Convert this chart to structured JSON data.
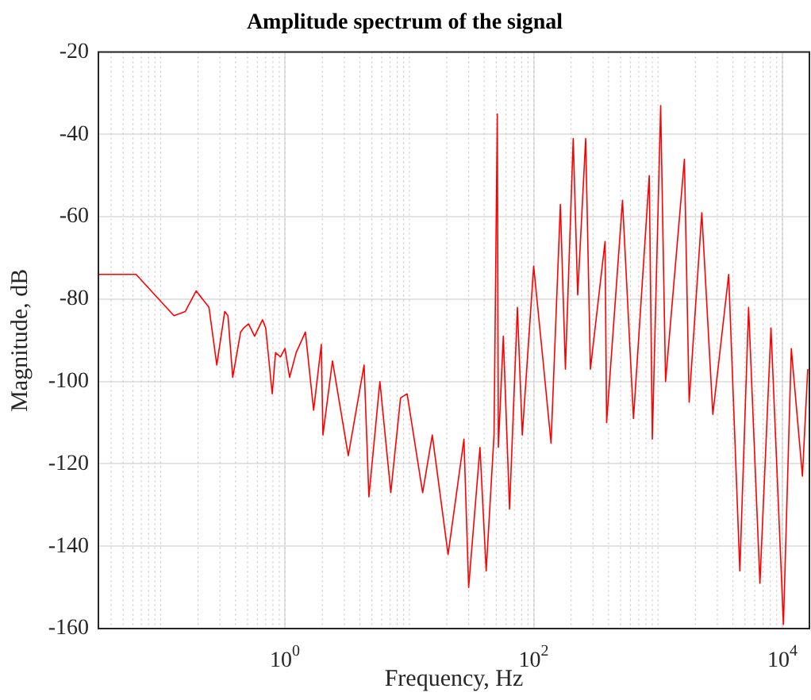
{
  "chart_data": {
    "type": "line",
    "title": "Amplitude spectrum of the signal",
    "xlabel": "Frequency, Hz",
    "ylabel": "Magnitude, dB",
    "log": "x",
    "grid": true,
    "marker": "none",
    "line_style": "solid",
    "xlim": [
      0.0316,
      16500
    ],
    "xticks": [
      {
        "value": 1,
        "label": "10$^{0}$"
      },
      {
        "value": 100,
        "label": "10$^{2}$"
      },
      {
        "value": 10000,
        "label": "10$^{4}$"
      }
    ],
    "ylim": [
      -160,
      -20
    ],
    "yticks": [
      -160,
      -140,
      -120,
      -100,
      -80,
      -60,
      -40,
      -20
    ],
    "x": [
      0.0316,
      0.0635,
      0.128,
      0.158,
      0.193,
      0.245,
      0.283,
      0.328,
      0.348,
      0.38,
      0.44,
      0.466,
      0.51,
      0.57,
      0.66,
      0.7,
      0.79,
      0.84,
      0.92,
      1.0,
      1.09,
      1.23,
      1.46,
      1.7,
      1.96,
      2.02,
      2.41,
      3.23,
      4.33,
      4.73,
      5.8,
      7.1,
      8.5,
      9.6,
      12.8,
      15.3,
      20.5,
      27.5,
      30,
      37,
      41.5,
      48,
      51,
      52,
      57,
      64,
      74,
      81,
      100,
      119,
      138,
      164,
      180,
      208,
      226,
      262,
      286,
      375,
      386,
      518,
      635,
      850,
      900,
      1050,
      1150,
      1630,
      1780,
      2250,
      2760,
      3700,
      4550,
      5350,
      6600,
      8100,
      10200,
      11800,
      14500,
      16000
    ],
    "series": [
      {
        "color": "#ff0000",
        "values": [
          -74,
          -74,
          -84,
          -83,
          -78,
          -82,
          -96,
          -83,
          -84,
          -99,
          -88,
          -87,
          -86,
          -89,
          -85,
          -87,
          -103,
          -93,
          -94,
          -92,
          -99,
          -93,
          -88,
          -107,
          -91,
          -113,
          -95,
          -118,
          -96,
          -128,
          -100,
          -127,
          -104,
          -103,
          -127,
          -113,
          -142,
          -114,
          -150,
          -116,
          -146,
          -113,
          -35,
          -116,
          -89,
          -131,
          -82,
          -113,
          -72,
          -95,
          -115,
          -57,
          -97,
          -41,
          -79,
          -41,
          -97,
          -66,
          -110,
          -56,
          -109,
          -50,
          -114,
          -33,
          -100,
          -46,
          -105,
          -59,
          -108,
          -74,
          -146,
          -82,
          -149,
          -87,
          -159,
          -92,
          -123,
          -97
        ]
      }
    ]
  }
}
